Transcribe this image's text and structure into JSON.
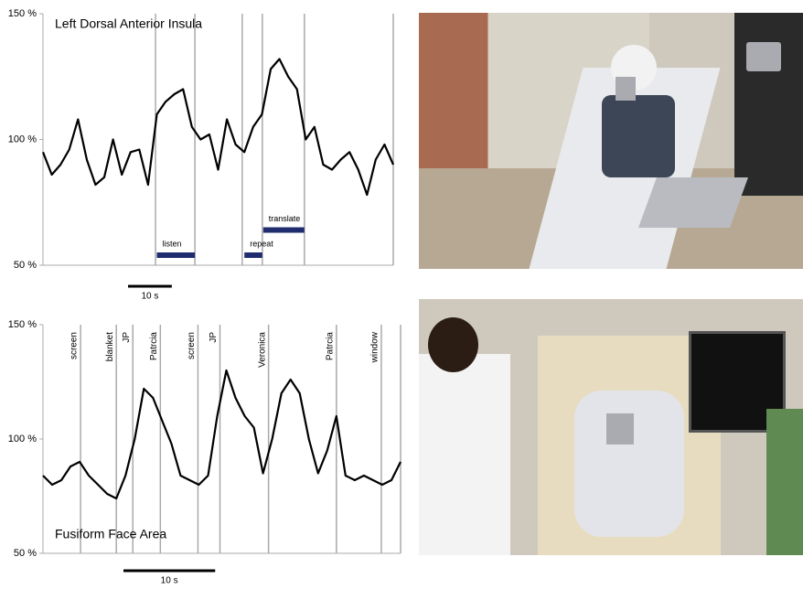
{
  "chart_data": [
    {
      "type": "line",
      "title": "Left Dorsal Anterior Insula",
      "color": "#000000",
      "x": [
        0,
        2,
        4,
        6,
        8,
        10,
        12,
        14,
        16,
        18,
        20,
        22,
        24,
        26,
        28,
        30,
        32,
        34,
        36,
        38,
        40,
        42,
        44,
        46,
        48,
        50,
        52,
        54,
        56,
        58,
        60,
        62,
        64,
        66,
        68,
        70,
        72,
        74,
        76,
        78,
        80
      ],
      "values": [
        95,
        86,
        90,
        96,
        108,
        92,
        82,
        85,
        100,
        86,
        95,
        96,
        82,
        110,
        115,
        118,
        120,
        105,
        100,
        102,
        88,
        108,
        98,
        95,
        105,
        110,
        128,
        132,
        125,
        120,
        100,
        105,
        90,
        88,
        92,
        95,
        88,
        78,
        92,
        98,
        90
      ],
      "xlim": [
        0,
        80
      ],
      "ylim": [
        50,
        150
      ],
      "yticks": [
        {
          "value": 150,
          "label": "150 %"
        },
        {
          "value": 100,
          "label": "100 %"
        },
        {
          "value": 50,
          "label": "50 %"
        }
      ],
      "event_lines": [
        25.7,
        34.7,
        45.5,
        50.1,
        59.7
      ],
      "bars": [
        {
          "label": "listen",
          "start": 26,
          "end": 34.7,
          "y": 54
        },
        {
          "label": "repeat",
          "start": 46,
          "end": 50.1,
          "y": 54
        },
        {
          "label": "translate",
          "start": 50.3,
          "end": 59.7,
          "y": 64
        }
      ],
      "scale_bar": {
        "label": "10 s",
        "length": 10
      }
    },
    {
      "type": "line",
      "title": "Fusiform Face Area",
      "color": "#000000",
      "x": [
        0,
        1,
        2,
        3,
        4,
        5,
        6,
        7,
        8,
        9,
        10,
        11,
        12,
        13,
        14,
        15,
        16,
        17,
        18,
        19,
        20,
        21,
        22,
        23,
        24,
        25,
        26,
        27,
        28,
        29,
        30,
        31,
        32,
        33,
        34,
        35,
        36,
        37,
        38,
        39
      ],
      "values": [
        84,
        80,
        82,
        88,
        90,
        84,
        80,
        76,
        74,
        84,
        100,
        122,
        118,
        108,
        98,
        84,
        82,
        80,
        84,
        110,
        130,
        118,
        110,
        105,
        85,
        100,
        120,
        126,
        120,
        100,
        85,
        95,
        110,
        84,
        82,
        84,
        82,
        80,
        82,
        90
      ],
      "xlim": [
        0,
        39
      ],
      "ylim": [
        50,
        150
      ],
      "yticks": [
        {
          "value": 150,
          "label": "150 %"
        },
        {
          "value": 100,
          "label": "100 %"
        },
        {
          "value": 50,
          "label": "50 %"
        }
      ],
      "events": [
        {
          "x": 4.1,
          "label": "screen"
        },
        {
          "x": 8.0,
          "label": "blanket"
        },
        {
          "x": 9.8,
          "label": "JP"
        },
        {
          "x": 12.8,
          "label": "Patrcia"
        },
        {
          "x": 16.9,
          "label": "screen"
        },
        {
          "x": 19.3,
          "label": "JP"
        },
        {
          "x": 24.6,
          "label": "Veronica"
        },
        {
          "x": 32.0,
          "label": "Patrcia"
        },
        {
          "x": 36.9,
          "label": "window"
        }
      ],
      "scale_bar": {
        "label": "10 s",
        "length": 10
      }
    }
  ]
}
